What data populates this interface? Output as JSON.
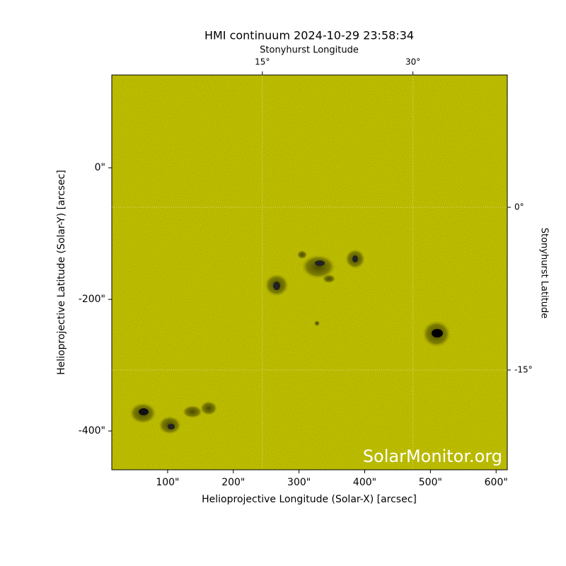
{
  "chart_data": {
    "type": "image",
    "title": "HMI continuum 2024-10-29 23:58:34",
    "xlabel": "Helioprojective Longitude (Solar-X) [arcsec]",
    "ylabel": "Helioprojective Latitude (Solar-Y) [arcsec]",
    "x2label": "Stonyhurst Longitude",
    "y2label": "Stonyhurst Latitude",
    "watermark": "SolarMonitor.org",
    "color": "#cccc00",
    "xlim": [
      15,
      617
    ],
    "ylim": [
      -459,
      141
    ],
    "xticks": [
      {
        "value": 100,
        "label": "100\""
      },
      {
        "value": 200,
        "label": "200\""
      },
      {
        "value": 300,
        "label": "300\""
      },
      {
        "value": 400,
        "label": "400\""
      },
      {
        "value": 500,
        "label": "500\""
      },
      {
        "value": 600,
        "label": "600\""
      }
    ],
    "yticks": [
      {
        "value": 0,
        "label": "0\""
      },
      {
        "value": -200,
        "label": "-200\""
      },
      {
        "value": -400,
        "label": "-400\""
      }
    ],
    "x2lim": [
      0,
      39.4
    ],
    "x2ticks": [
      {
        "value": 15,
        "label": "15°"
      },
      {
        "value": 30,
        "label": "30°"
      }
    ],
    "y2lim": [
      -24.2,
      12.2
    ],
    "y2ticks": [
      {
        "value": 0,
        "label": "0°"
      },
      {
        "value": -15,
        "label": "-15°"
      }
    ],
    "grid": true
  }
}
